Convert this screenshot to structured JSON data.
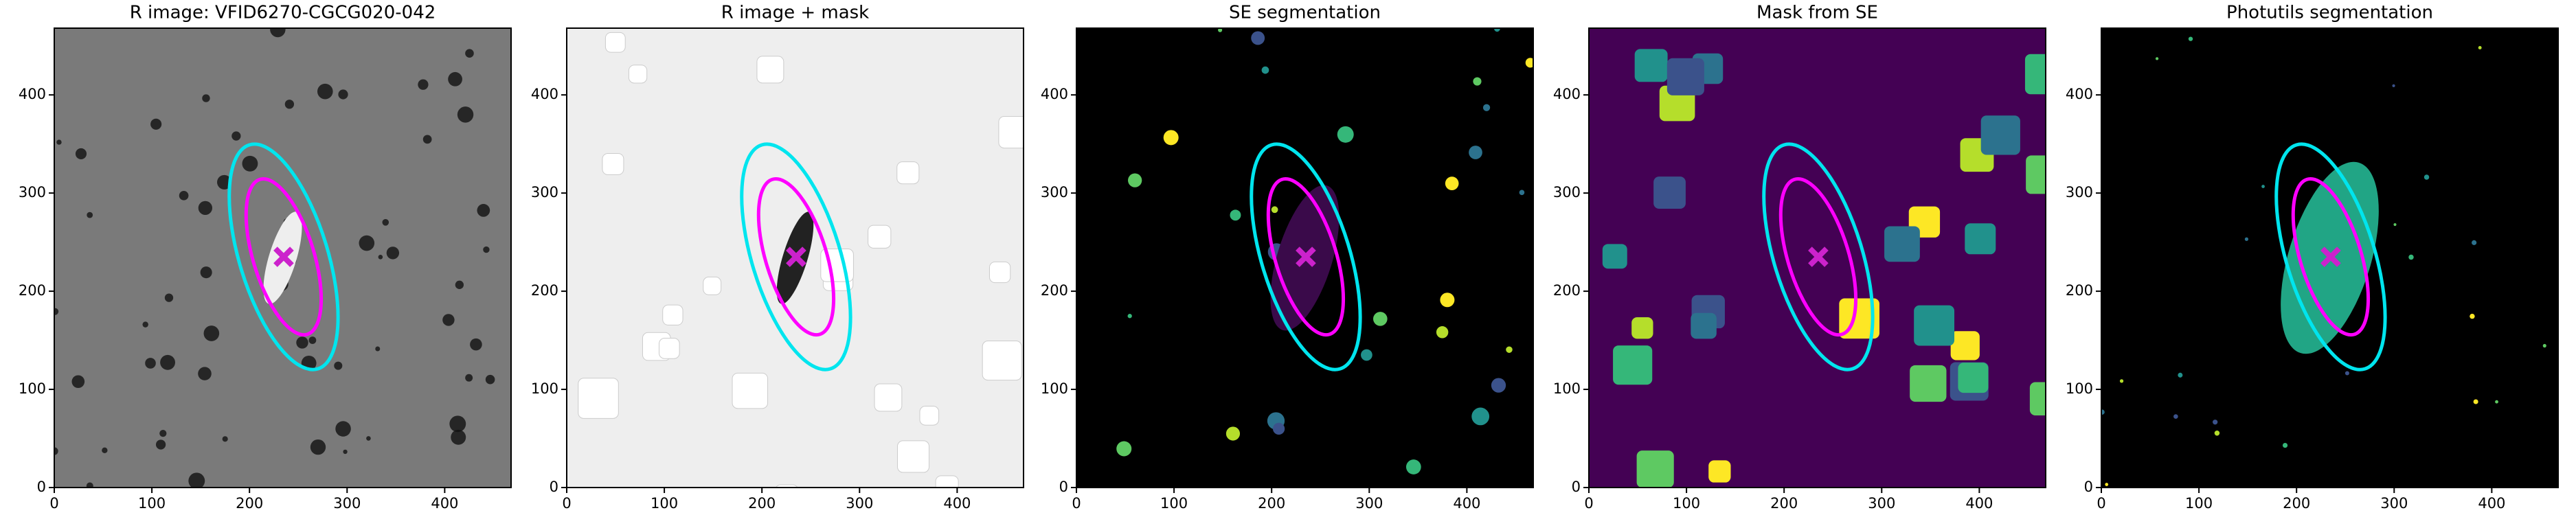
{
  "chart_data": [
    {
      "type": "image",
      "title": "R image: VFID6270-CGCG020-042",
      "background": "#7a7a7a",
      "xlim": [
        0,
        468
      ],
      "ylim": [
        0,
        468
      ],
      "xticks": [
        0,
        100,
        200,
        300,
        400
      ],
      "yticks": [
        0,
        100,
        200,
        300,
        400
      ],
      "center": {
        "x": 235,
        "y": 235,
        "color": "#cc22cc"
      },
      "ellipses": [
        {
          "color": "#00e5ee",
          "a": 120,
          "b": 45,
          "angle": 107
        },
        {
          "color": "#ff00ff",
          "a": 83,
          "b": 31,
          "angle": 107
        }
      ]
    },
    {
      "type": "image",
      "title": "R image + mask",
      "background": "#eeeeee",
      "xlim": [
        0,
        468
      ],
      "ylim": [
        0,
        468
      ],
      "xticks": [
        0,
        100,
        200,
        300,
        400
      ],
      "yticks": [
        0,
        100,
        200,
        300,
        400
      ],
      "center": {
        "x": 235,
        "y": 235,
        "color": "#cc22cc"
      },
      "ellipses": [
        {
          "color": "#00e5ee",
          "a": 120,
          "b": 45,
          "angle": 107
        },
        {
          "color": "#ff00ff",
          "a": 83,
          "b": 31,
          "angle": 107
        }
      ]
    },
    {
      "type": "image",
      "title": "SE segmentation",
      "background": "#000000",
      "xlim": [
        0,
        468
      ],
      "ylim": [
        0,
        468
      ],
      "xticks": [
        0,
        100,
        200,
        300,
        400
      ],
      "yticks": [
        0,
        100,
        200,
        300,
        400
      ],
      "center": {
        "x": 235,
        "y": 235,
        "color": "#cc22cc"
      },
      "ellipses": [
        {
          "color": "#00e5ee",
          "a": 120,
          "b": 45,
          "angle": 107
        },
        {
          "color": "#ff00ff",
          "a": 83,
          "b": 31,
          "angle": 107
        }
      ]
    },
    {
      "type": "image",
      "title": "Mask from SE",
      "background": "#440154",
      "xlim": [
        0,
        468
      ],
      "ylim": [
        0,
        468
      ],
      "xticks": [
        0,
        100,
        200,
        300,
        400
      ],
      "yticks": [
        0,
        100,
        200,
        300,
        400
      ],
      "center": {
        "x": 235,
        "y": 235,
        "color": "#cc22cc"
      },
      "ellipses": [
        {
          "color": "#00e5ee",
          "a": 120,
          "b": 45,
          "angle": 107
        },
        {
          "color": "#ff00ff",
          "a": 83,
          "b": 31,
          "angle": 107
        }
      ]
    },
    {
      "type": "image",
      "title": "Photutils segmentation",
      "background": "#000000",
      "xlim": [
        0,
        468
      ],
      "ylim": [
        0,
        468
      ],
      "xticks": [
        0,
        100,
        200,
        300,
        400
      ],
      "yticks": [
        0,
        100,
        200,
        300,
        400
      ],
      "center": {
        "x": 235,
        "y": 235,
        "color": "#cc22cc"
      },
      "ellipses": [
        {
          "color": "#00e5ee",
          "a": 120,
          "b": 45,
          "angle": 107
        },
        {
          "color": "#ff00ff",
          "a": 83,
          "b": 31,
          "angle": 107
        }
      ]
    }
  ]
}
